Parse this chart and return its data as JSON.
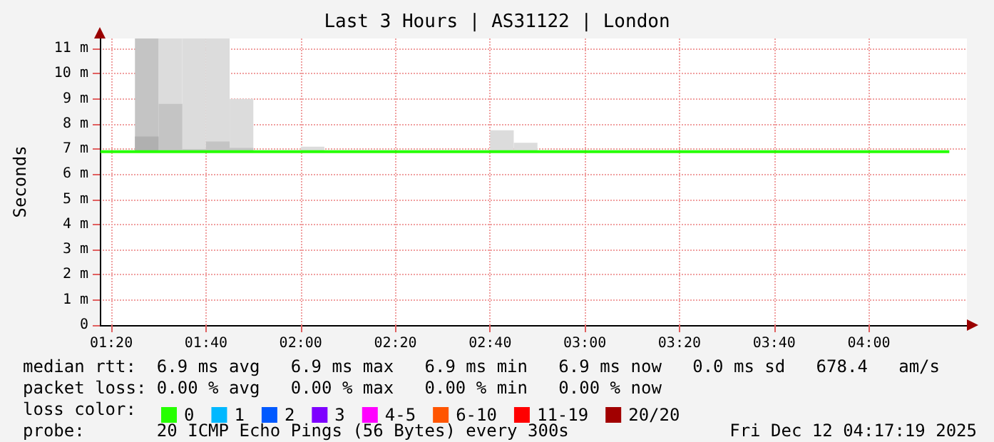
{
  "chart_data": {
    "type": "line",
    "title": "Last 3 Hours | AS31122 | London",
    "ylabel": "Seconds",
    "legend_title": "loss color:",
    "x": [
      1.295,
      4.283
    ],
    "series": [
      {
        "type": "bar",
        "color": "#dcdcdc",
        "x": [
          1.5417,
          1.625,
          1.7083,
          1.7917,
          2.0417,
          2.7083,
          2.7917
        ],
        "base": [
          6.9,
          6.9,
          6.9,
          6.9,
          6.9,
          6.9,
          6.9
        ],
        "values": [
          4.5,
          4.5,
          4.5,
          2.1,
          0.2,
          0.85,
          0.35
        ]
      },
      {
        "type": "bar",
        "color": "#c4c4c4",
        "x": [
          1.4583,
          1.5417,
          1.625,
          1.7083,
          1.7917
        ],
        "base": [
          6.9,
          6.9,
          6.9,
          6.9,
          6.9
        ],
        "values": [
          4.5,
          1.9,
          0.1,
          0.4,
          0.15
        ]
      },
      {
        "type": "bar",
        "color": "#b0b0b0",
        "x": [
          1.4583
        ],
        "base": [
          6.9
        ],
        "values": [
          0.6
        ]
      },
      {
        "name": "0",
        "color": "#26ff00",
        "values": [
          6.9,
          6.9
        ]
      },
      {
        "name": "1",
        "color": "#00b8ff",
        "values": [
          null,
          null
        ]
      },
      {
        "name": "2",
        "color": "#0059ff",
        "values": [
          null,
          null
        ]
      },
      {
        "name": "3",
        "color": "#7e00ff",
        "values": [
          null,
          null
        ]
      },
      {
        "name": "4-5",
        "color": "#ff00ff",
        "values": [
          null,
          null
        ]
      },
      {
        "name": "6-10",
        "color": "#ff5500",
        "values": [
          null,
          null
        ]
      },
      {
        "name": "11-19",
        "color": "#ff0000",
        "values": [
          null,
          null
        ]
      },
      {
        "name": "20/20",
        "color": "#a10000",
        "values": [
          null,
          null
        ]
      }
    ],
    "xlim": [
      1.293,
      4.345
    ],
    "xticks": [
      {
        "value": 1.3333,
        "label": "01:20"
      },
      {
        "value": 1.6667,
        "label": "01:40"
      },
      {
        "value": 2,
        "label": "02:00"
      },
      {
        "value": 2.3333,
        "label": "02:20"
      },
      {
        "value": 2.6667,
        "label": "02:40"
      },
      {
        "value": 3,
        "label": "03:00"
      },
      {
        "value": 3.3333,
        "label": "03:20"
      },
      {
        "value": 3.6667,
        "label": "03:40"
      },
      {
        "value": 4,
        "label": "04:00"
      }
    ],
    "ylim": [
      0,
      11.4
    ],
    "yticks": [
      0,
      {
        "value": 1,
        "label": "1 m"
      },
      {
        "value": 2,
        "label": "2 m"
      },
      {
        "value": 3,
        "label": "3 m"
      },
      {
        "value": 4,
        "label": "4 m"
      },
      {
        "value": 5,
        "label": "5 m"
      },
      {
        "value": 6,
        "label": "6 m"
      },
      {
        "value": 7,
        "label": "7 m"
      },
      {
        "value": 8,
        "label": "8 m"
      },
      {
        "value": 9,
        "label": "9 m"
      },
      {
        "value": 10,
        "label": "10 m"
      },
      {
        "value": 11,
        "label": "11 m"
      }
    ],
    "grid": true,
    "legend": "bottom left",
    "marker": "none",
    "line_style": "solid",
    "annotations": [
      "median rtt:  6.9 ms avg   6.9 ms max   6.9 ms min   6.9 ms now   0.0 ms sd   678.4   am/s",
      "packet loss: 0.00 % avg   0.00 % max   0.00 % min   0.00 % now",
      "probe:       20 ICMP Echo Pings (56 Bytes) every 300s",
      "Fri Dec 12 04:17:19 2025"
    ]
  }
}
